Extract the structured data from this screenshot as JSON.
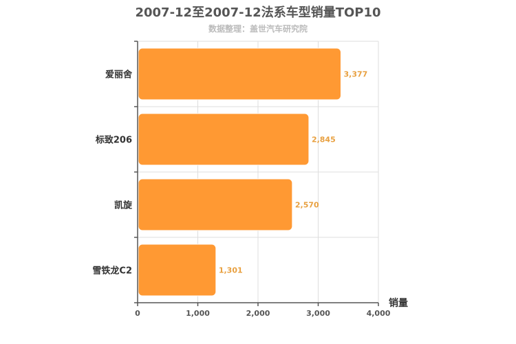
{
  "chart_data": {
    "type": "bar",
    "orientation": "horizontal",
    "title": "2007-12至2007-12法系车型销量TOP10",
    "subtitle": "数据整理：盖世汽车研究院",
    "categories": [
      "爱丽舍",
      "标致206",
      "凯旋",
      "雪铁龙C2"
    ],
    "values": [
      3377,
      2845,
      2570,
      1301
    ],
    "value_labels": [
      "3,377",
      "2,845",
      "2,570",
      "1,301"
    ],
    "xlabel": "销量",
    "ylabel": "",
    "xlim": [
      0,
      4000
    ],
    "x_ticks": [
      0,
      1000,
      2000,
      3000,
      4000
    ],
    "x_tick_labels": [
      "0",
      "1,000",
      "2,000",
      "3,000",
      "4,000"
    ],
    "grid": true,
    "bar_color": "#ff9933",
    "data_label_color": "#e8a040"
  }
}
